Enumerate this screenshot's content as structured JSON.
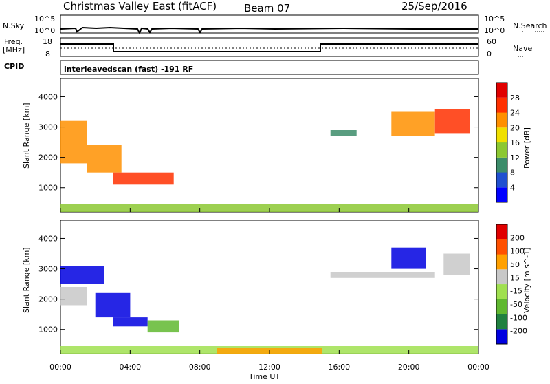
{
  "header": {
    "title": "Christmas Valley East (fitACF)",
    "beam": "Beam 07",
    "date": "25/Sep/2016"
  },
  "noise_panel": {
    "left_label": "N.Sky",
    "left_ticks": [
      "10^5",
      "10^0"
    ],
    "right_label": "N.Search",
    "right_ticks": [
      "10^5",
      "10^0"
    ]
  },
  "freq_panel": {
    "left_label_line1": "Freq.",
    "left_label_line2": "[MHz]",
    "left_ticks": [
      "18",
      "8"
    ],
    "right_label": "Nave",
    "right_ticks": [
      "60",
      "0"
    ]
  },
  "cpid_panel": {
    "label": "CPID",
    "text": "interleavedscan (fast) -191 RF"
  },
  "chart_data": [
    {
      "type": "heatmap",
      "title": "",
      "ylabel": "Slant Range [km]",
      "xlabel": "Time UT",
      "x_ticks": [
        "00:00",
        "04:00",
        "08:00",
        "12:00",
        "16:00",
        "20:00",
        "00:00"
      ],
      "y_ticks": [
        "1000",
        "2000",
        "3000",
        "4000"
      ],
      "ylim": [
        200,
        4600
      ],
      "colorbar_label": "Power [dB]",
      "colorbar_ticks": [
        "4",
        "8",
        "12",
        "16",
        "20",
        "24",
        "28"
      ],
      "colors": [
        "#0000ff",
        "#2050d0",
        "#3c8c6a",
        "#8cc832",
        "#f0e000",
        "#ff9000",
        "#ff3000",
        "#e00000"
      ],
      "regions": [
        {
          "t0": 0.0,
          "t1": 1.5,
          "r0": 1800,
          "r1": 3200,
          "level": 5
        },
        {
          "t0": 1.5,
          "t1": 3.5,
          "r0": 1500,
          "r1": 2400,
          "level": 5
        },
        {
          "t0": 3.0,
          "t1": 6.5,
          "r0": 1100,
          "r1": 1500,
          "level": 6
        },
        {
          "t0": 0.0,
          "t1": 24.0,
          "r0": 200,
          "r1": 450,
          "level": 3
        },
        {
          "t0": 15.5,
          "t1": 17.0,
          "r0": 2700,
          "r1": 2900,
          "level": 2
        },
        {
          "t0": 19.0,
          "t1": 21.5,
          "r0": 2700,
          "r1": 3500,
          "level": 5
        },
        {
          "t0": 21.5,
          "t1": 23.5,
          "r0": 2800,
          "r1": 3600,
          "level": 6
        }
      ]
    },
    {
      "type": "heatmap",
      "title": "",
      "ylabel": "Slant Range [km]",
      "xlabel": "Time UT",
      "x_ticks": [
        "00:00",
        "04:00",
        "08:00",
        "12:00",
        "16:00",
        "20:00",
        "00:00"
      ],
      "y_ticks": [
        "1000",
        "2000",
        "3000",
        "4000"
      ],
      "ylim": [
        200,
        4600
      ],
      "colorbar_label": "Velocity [m s^-1]",
      "colorbar_ticks": [
        "200",
        "100",
        "50",
        "15",
        "-15",
        "-50",
        "-100",
        "-200"
      ],
      "colors": [
        "#0000e0",
        "#208040",
        "#60b830",
        "#a0e050",
        "#c8c8c8",
        "#ffa000",
        "#ff5000",
        "#e00000"
      ],
      "regions": [
        {
          "t0": 0.0,
          "t1": 1.5,
          "r0": 1800,
          "r1": 2400,
          "level": 4
        },
        {
          "t0": 0.0,
          "t1": 2.5,
          "r0": 2500,
          "r1": 3100,
          "level": 0
        },
        {
          "t0": 2.0,
          "t1": 4.0,
          "r0": 1400,
          "r1": 2200,
          "level": 0
        },
        {
          "t0": 3.0,
          "t1": 5.0,
          "r0": 1100,
          "r1": 1400,
          "level": 0
        },
        {
          "t0": 5.0,
          "t1": 6.8,
          "r0": 900,
          "r1": 1300,
          "level": 2
        },
        {
          "t0": 0.0,
          "t1": 24.0,
          "r0": 200,
          "r1": 450,
          "level": 3
        },
        {
          "t0": 9.0,
          "t1": 15.0,
          "r0": 200,
          "r1": 400,
          "level": 5
        },
        {
          "t0": 15.5,
          "t1": 21.5,
          "r0": 2700,
          "r1": 2900,
          "level": 4
        },
        {
          "t0": 19.0,
          "t1": 21.0,
          "r0": 3000,
          "r1": 3700,
          "level": 0
        },
        {
          "t0": 22.0,
          "t1": 23.5,
          "r0": 2800,
          "r1": 3500,
          "level": 4
        }
      ]
    }
  ]
}
